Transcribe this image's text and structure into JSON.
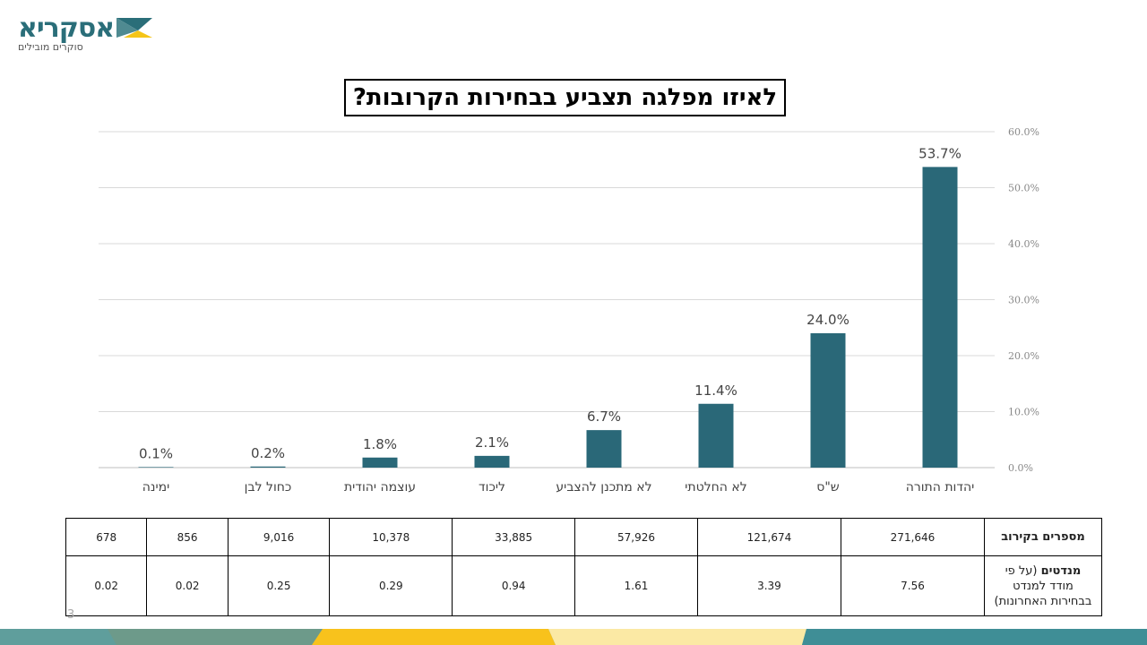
{
  "logo": {
    "name": "אסקריא",
    "tagline": "סוקרים מובילים"
  },
  "title": "לאיזו מפלגה תצביע בבחירות הקרובות?",
  "colors": {
    "bar": "#2a6878",
    "grid": "#d9d9d9"
  },
  "chart_data": {
    "type": "bar",
    "title": "לאיזו מפלגה תצביע בבחירות הקרובות?",
    "categories": [
      "יהדות התורה",
      "ש\"ס",
      "לא החלטתי",
      "לא מתכנן להצביע",
      "ליכוד",
      "עוצמה יהודית",
      "כחול לבן",
      "ימינה"
    ],
    "values": [
      53.7,
      24.0,
      11.4,
      6.7,
      2.1,
      1.8,
      0.2,
      0.1
    ],
    "data_labels": [
      "53.7%",
      "24.0%",
      "11.4%",
      "6.7%",
      "2.1%",
      "1.8%",
      "0.2%",
      "0.1%"
    ],
    "ylim": [
      0,
      60
    ],
    "yticks": [
      "0.0%",
      "10.0%",
      "20.0%",
      "30.0%",
      "40.0%",
      "50.0%",
      "60.0%"
    ],
    "y_axis_side": "right",
    "grid": true,
    "direction": "rtl"
  },
  "table": {
    "row1_label": "מספרים בקירוב",
    "row1": [
      "271,646",
      "121,674",
      "57,926",
      "33,885",
      "10,378",
      "9,016",
      "856",
      "678"
    ],
    "row2_label_bold": "מנדטים",
    "row2_label_rest": "(על פי",
    "row2_label_line2": "מודד למנדט",
    "row2_label_line3": "בבחירות האחרונות)",
    "row2": [
      "7.56",
      "3.39",
      "1.61",
      "0.94",
      "0.29",
      "0.25",
      "0.02",
      "0.02"
    ]
  },
  "page_number": "3"
}
